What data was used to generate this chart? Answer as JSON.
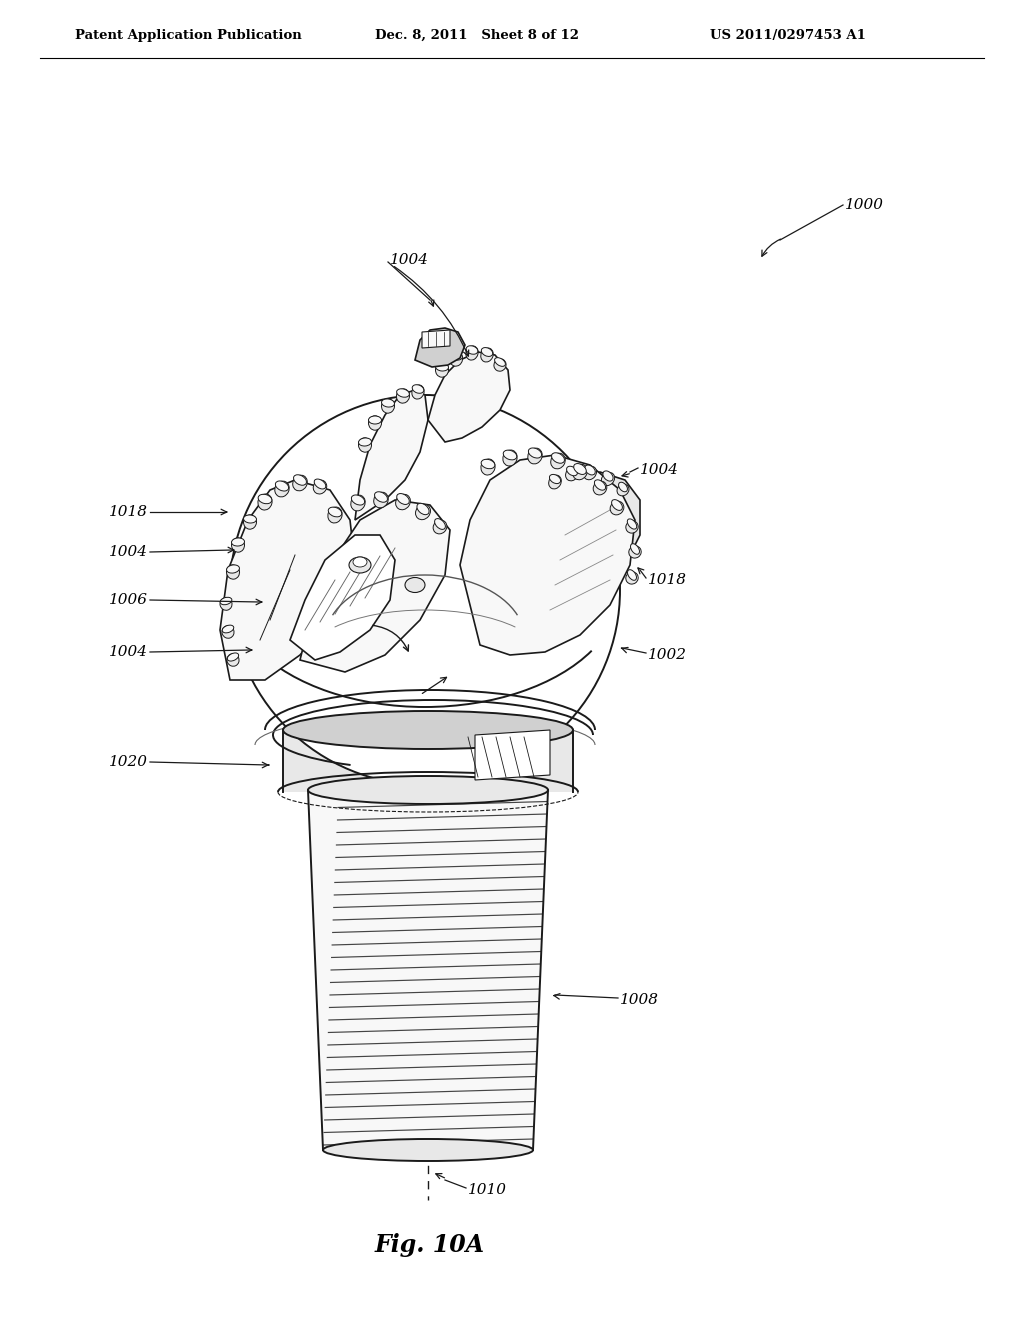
{
  "background_color": "#ffffff",
  "header_left": "Patent Application Publication",
  "header_mid": "Dec. 8, 2011   Sheet 8 of 12",
  "header_right": "US 2011/0297453 A1",
  "figure_label": "Fig. 10A",
  "line_color": "#1a1a1a",
  "fill_light": "#f8f8f8",
  "fill_mid": "#e8e8e8",
  "fill_dark": "#d0d0d0",
  "fill_shank": "#f0f0f0",
  "thread_color": "#444444"
}
